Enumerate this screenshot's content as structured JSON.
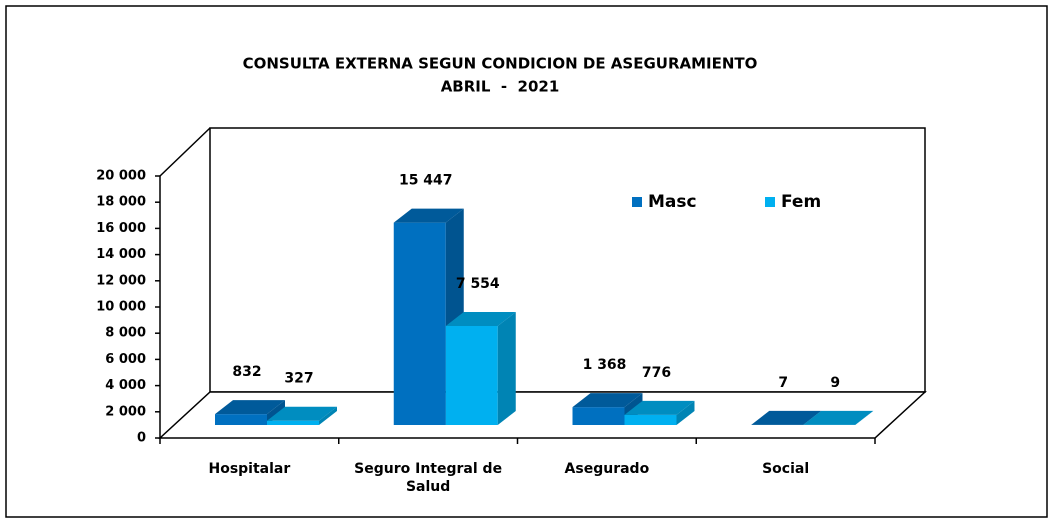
{
  "chart_data": {
    "type": "bar3d",
    "title": "CONSULTA EXTERNA SEGUN CONDICION DE ASEGURAMIENTO",
    "subtitle": "ABRIL  -  2021",
    "categories": [
      "Hospitalar",
      "Seguro Integral de Salud",
      "Asegurado",
      "Social"
    ],
    "series": [
      {
        "name": "Masc",
        "color": "#0070c0",
        "values": [
          832,
          15447,
          1368,
          7
        ],
        "value_labels": [
          "832",
          "15 447",
          "1 368",
          "7"
        ]
      },
      {
        "name": "Fem",
        "color": "#00b0f0",
        "values": [
          327,
          7554,
          776,
          9
        ],
        "value_labels": [
          "327",
          "7 554",
          "776",
          "9"
        ]
      }
    ],
    "ylim": [
      0,
      20000
    ],
    "yticks": [
      0,
      {
        "value": 2000,
        "label": "2 000"
      },
      {
        "value": 4000,
        "label": "4 000"
      },
      {
        "value": 6000,
        "label": "6 000"
      },
      {
        "value": 8000,
        "label": "8 000"
      },
      {
        "value": 10000,
        "label": "10 000"
      },
      {
        "value": 12000,
        "label": "12 000"
      },
      {
        "value": 14000,
        "label": "14 000"
      },
      {
        "value": 16000,
        "label": "16 000"
      },
      {
        "value": 18000,
        "label": "18 000"
      },
      {
        "value": 20000,
        "label": "20 000"
      }
    ],
    "legend": "upper right",
    "grid": false
  }
}
